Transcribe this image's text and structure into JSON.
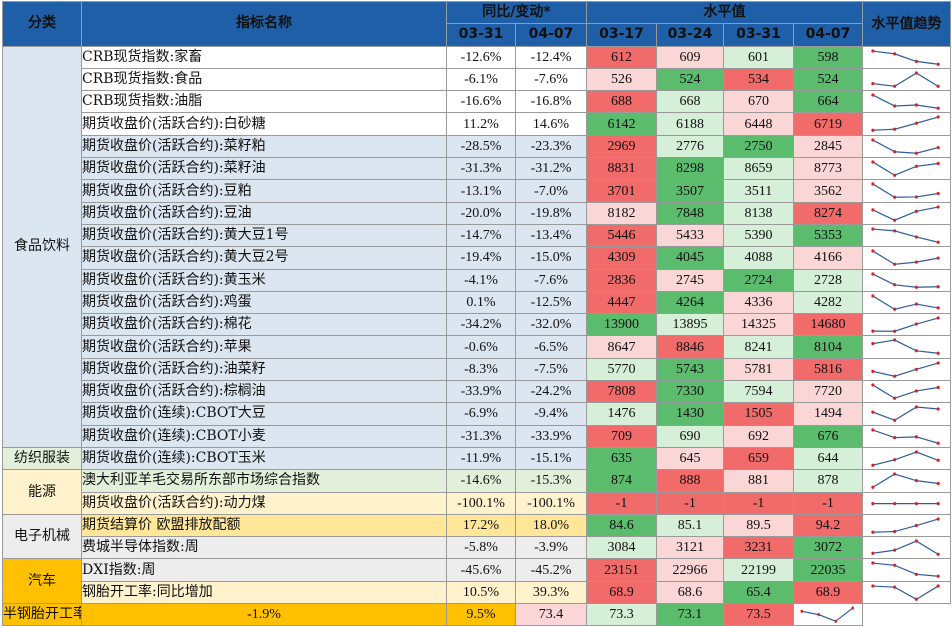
{
  "headers": {
    "category": "分类",
    "indicator": "指标名称",
    "change": "同比/变动*",
    "level": "水平值",
    "trend": "水平值趋势",
    "change_dates": [
      "03-31",
      "04-07"
    ],
    "level_dates": [
      "03-17",
      "03-24",
      "03-31",
      "04-07"
    ]
  },
  "colors": {
    "header_bg": "#1f5fa8",
    "group_food": "#dce6f1",
    "group_textile": "#e2efda",
    "group_energy": "#fff2cc",
    "group_energy_row2": "#ffe699",
    "group_electronics": "#ededed",
    "group_auto": "#ffc000",
    "level_red_strong": "#f26b6b",
    "level_red_light": "#fad6d6",
    "level_green_light": "#d5efd8",
    "level_green_strong": "#5cbc6e",
    "trend_line": "#2e5d9f",
    "trend_marker": "#e02020"
  },
  "groups": [
    {
      "name": "食品饮料",
      "rows": 18,
      "bg": "#dce6f1"
    },
    {
      "name": "纺织服装",
      "rows": 1,
      "bg": "#e2efda"
    },
    {
      "name": "能源",
      "rows": 2,
      "bg": "#fff2cc"
    },
    {
      "name": "电子机械",
      "rows": 2,
      "bg": "#ededed"
    },
    {
      "name": "汽车",
      "rows": 2,
      "bg": "#ffc000"
    }
  ],
  "rows": [
    {
      "indicator": "CRB现货指数:家畜",
      "chg": [
        "-12.6%",
        "-12.4%"
      ],
      "levels": [
        612,
        609,
        601,
        598
      ],
      "lv": [
        "612",
        "609",
        "601",
        "598"
      ],
      "bg": "#ffffff",
      "heat": [
        "#f26b6b",
        "#fad6d6",
        "#d5efd8",
        "#5cbc6e"
      ]
    },
    {
      "indicator": "CRB现货指数:食品",
      "chg": [
        "-6.1%",
        "-7.6%"
      ],
      "levels": [
        526,
        524,
        534,
        524
      ],
      "lv": [
        "526",
        "524",
        "534",
        "524"
      ],
      "bg": "#ffffff",
      "heat": [
        "#fad6d6",
        "#5cbc6e",
        "#f26b6b",
        "#5cbc6e"
      ]
    },
    {
      "indicator": "CRB现货指数:油脂",
      "chg": [
        "-16.6%",
        "-16.8%"
      ],
      "levels": [
        688,
        668,
        670,
        664
      ],
      "lv": [
        "688",
        "668",
        "670",
        "664"
      ],
      "bg": "#ffffff",
      "heat": [
        "#f26b6b",
        "#d5efd8",
        "#fad6d6",
        "#5cbc6e"
      ]
    },
    {
      "indicator": "期货收盘价(活跃合约):白砂糖",
      "chg": [
        "11.2%",
        "14.6%"
      ],
      "levels": [
        6142,
        6188,
        6448,
        6719
      ],
      "lv": [
        "6142",
        "6188",
        "6448",
        "6719"
      ],
      "bg": "#ffffff",
      "heat": [
        "#5cbc6e",
        "#d5efd8",
        "#fad6d6",
        "#f26b6b"
      ]
    },
    {
      "indicator": "期货收盘价(活跃合约):菜籽粕",
      "chg": [
        "-28.5%",
        "-23.3%"
      ],
      "levels": [
        2969,
        2776,
        2750,
        2845
      ],
      "lv": [
        "2969",
        "2776",
        "2750",
        "2845"
      ],
      "bg": "#dce6f1",
      "heat": [
        "#f26b6b",
        "#d5efd8",
        "#5cbc6e",
        "#fad6d6"
      ]
    },
    {
      "indicator": "期货收盘价(活跃合约):菜籽油",
      "chg": [
        "-31.3%",
        "-31.2%"
      ],
      "levels": [
        8831,
        8298,
        8659,
        8773
      ],
      "lv": [
        "8831",
        "8298",
        "8659",
        "8773"
      ],
      "bg": "#dce6f1",
      "heat": [
        "#f26b6b",
        "#5cbc6e",
        "#d5efd8",
        "#fad6d6"
      ]
    },
    {
      "indicator": "期货收盘价(活跃合约):豆粕",
      "chg": [
        "-13.1%",
        "-7.0%"
      ],
      "levels": [
        3701,
        3507,
        3511,
        3562
      ],
      "lv": [
        "3701",
        "3507",
        "3511",
        "3562"
      ],
      "bg": "#dce6f1",
      "heat": [
        "#f26b6b",
        "#5cbc6e",
        "#d5efd8",
        "#fad6d6"
      ]
    },
    {
      "indicator": "期货收盘价(活跃合约):豆油",
      "chg": [
        "-20.0%",
        "-19.8%"
      ],
      "levels": [
        8182,
        7848,
        8138,
        8274
      ],
      "lv": [
        "8182",
        "7848",
        "8138",
        "8274"
      ],
      "bg": "#dce6f1",
      "heat": [
        "#fad6d6",
        "#5cbc6e",
        "#d5efd8",
        "#f26b6b"
      ]
    },
    {
      "indicator": "期货收盘价(活跃合约):黄大豆1号",
      "chg": [
        "-14.7%",
        "-13.4%"
      ],
      "levels": [
        5446,
        5433,
        5390,
        5353
      ],
      "lv": [
        "5446",
        "5433",
        "5390",
        "5353"
      ],
      "bg": "#dce6f1",
      "heat": [
        "#f26b6b",
        "#fad6d6",
        "#d5efd8",
        "#5cbc6e"
      ]
    },
    {
      "indicator": "期货收盘价(活跃合约):黄大豆2号",
      "chg": [
        "-19.4%",
        "-15.0%"
      ],
      "levels": [
        4309,
        4045,
        4088,
        4166
      ],
      "lv": [
        "4309",
        "4045",
        "4088",
        "4166"
      ],
      "bg": "#dce6f1",
      "heat": [
        "#f26b6b",
        "#5cbc6e",
        "#d5efd8",
        "#fad6d6"
      ]
    },
    {
      "indicator": "期货收盘价(活跃合约):黄玉米",
      "chg": [
        "-4.1%",
        "-7.6%"
      ],
      "levels": [
        2836,
        2745,
        2724,
        2728
      ],
      "lv": [
        "2836",
        "2745",
        "2724",
        "2728"
      ],
      "bg": "#dce6f1",
      "heat": [
        "#f26b6b",
        "#fad6d6",
        "#5cbc6e",
        "#d5efd8"
      ]
    },
    {
      "indicator": "期货收盘价(活跃合约):鸡蛋",
      "chg": [
        "0.1%",
        "-12.5%"
      ],
      "levels": [
        4447,
        4264,
        4336,
        4282
      ],
      "lv": [
        "4447",
        "4264",
        "4336",
        "4282"
      ],
      "bg": "#dce6f1",
      "heat": [
        "#f26b6b",
        "#5cbc6e",
        "#fad6d6",
        "#d5efd8"
      ]
    },
    {
      "indicator": "期货收盘价(活跃合约):棉花",
      "chg": [
        "-34.2%",
        "-32.0%"
      ],
      "levels": [
        13900,
        13895,
        14325,
        14680
      ],
      "lv": [
        "13900",
        "13895",
        "14325",
        "14680"
      ],
      "bg": "#dce6f1",
      "heat": [
        "#5cbc6e",
        "#d5efd8",
        "#fad6d6",
        "#f26b6b"
      ]
    },
    {
      "indicator": "期货收盘价(活跃合约):苹果",
      "chg": [
        "-0.6%",
        "-6.5%"
      ],
      "levels": [
        8647,
        8846,
        8241,
        8104
      ],
      "lv": [
        "8647",
        "8846",
        "8241",
        "8104"
      ],
      "bg": "#dce6f1",
      "heat": [
        "#fad6d6",
        "#f26b6b",
        "#d5efd8",
        "#5cbc6e"
      ]
    },
    {
      "indicator": "期货收盘价(活跃合约):油菜籽",
      "chg": [
        "-8.3%",
        "-7.5%"
      ],
      "levels": [
        5770,
        5743,
        5781,
        5816
      ],
      "lv": [
        "5770",
        "5743",
        "5781",
        "5816"
      ],
      "bg": "#dce6f1",
      "heat": [
        "#d5efd8",
        "#5cbc6e",
        "#fad6d6",
        "#f26b6b"
      ]
    },
    {
      "indicator": "期货收盘价(活跃合约):棕榈油",
      "chg": [
        "-33.9%",
        "-24.2%"
      ],
      "levels": [
        7808,
        7330,
        7594,
        7720
      ],
      "lv": [
        "7808",
        "7330",
        "7594",
        "7720"
      ],
      "bg": "#dce6f1",
      "heat": [
        "#f26b6b",
        "#5cbc6e",
        "#d5efd8",
        "#fad6d6"
      ]
    },
    {
      "indicator": "期货收盘价(连续):CBOT大豆",
      "chg": [
        "-6.9%",
        "-9.4%"
      ],
      "levels": [
        1476,
        1430,
        1505,
        1494
      ],
      "lv": [
        "1476",
        "1430",
        "1505",
        "1494"
      ],
      "bg": "#dce6f1",
      "heat": [
        "#d5efd8",
        "#5cbc6e",
        "#f26b6b",
        "#fad6d6"
      ]
    },
    {
      "indicator": "期货收盘价(连续):CBOT小麦",
      "chg": [
        "-31.3%",
        "-33.9%"
      ],
      "levels": [
        709,
        690,
        692,
        676
      ],
      "lv": [
        "709",
        "690",
        "692",
        "676"
      ],
      "bg": "#dce6f1",
      "heat": [
        "#f26b6b",
        "#d5efd8",
        "#fad6d6",
        "#5cbc6e"
      ]
    },
    {
      "indicator": "期货收盘价(连续):CBOT玉米",
      "chg": [
        "-11.9%",
        "-15.1%"
      ],
      "levels": [
        635,
        645,
        659,
        644
      ],
      "lv": [
        "635",
        "645",
        "659",
        "644"
      ],
      "bg": "#dce6f1",
      "heat": [
        "#5cbc6e",
        "#fad6d6",
        "#f26b6b",
        "#d5efd8"
      ]
    },
    {
      "indicator": "澳大利亚羊毛交易所东部市场综合指数",
      "chg": [
        "-14.6%",
        "-15.3%"
      ],
      "levels": [
        874,
        888,
        881,
        878
      ],
      "lv": [
        "874",
        "888",
        "881",
        "878"
      ],
      "bg": "#e2efda",
      "heat": [
        "#5cbc6e",
        "#f26b6b",
        "#fad6d6",
        "#d5efd8"
      ]
    },
    {
      "indicator": "期货收盘价(活跃合约):动力煤",
      "chg": [
        "-100.1%",
        "-100.1%"
      ],
      "levels": [
        -1,
        -1,
        -1,
        -1
      ],
      "lv": [
        "-1",
        "-1",
        "-1",
        "-1"
      ],
      "bg": "#fff2cc",
      "heat": [
        "#f26b6b",
        "#f26b6b",
        "#f26b6b",
        "#f26b6b"
      ]
    },
    {
      "indicator": "期货结算价 欧盟排放配额",
      "chg": [
        "17.2%",
        "18.0%"
      ],
      "levels": [
        84.6,
        85.1,
        89.5,
        94.2
      ],
      "lv": [
        "84.6",
        "85.1",
        "89.5",
        "94.2"
      ],
      "bg": "#ffe699",
      "heat": [
        "#5cbc6e",
        "#d5efd8",
        "#fad6d6",
        "#f26b6b"
      ]
    },
    {
      "indicator": "费城半导体指数:周",
      "chg": [
        "-5.8%",
        "-3.9%"
      ],
      "levels": [
        3084,
        3121,
        3231,
        3072
      ],
      "lv": [
        "3084",
        "3121",
        "3231",
        "3072"
      ],
      "bg": "#ededed",
      "heat": [
        "#d5efd8",
        "#fad6d6",
        "#f26b6b",
        "#5cbc6e"
      ]
    },
    {
      "indicator": "DXI指数:周",
      "chg": [
        "-45.6%",
        "-45.2%"
      ],
      "levels": [
        23151,
        22966,
        22199,
        22035
      ],
      "lv": [
        "23151",
        "22966",
        "22199",
        "22035"
      ],
      "bg": "#ededed",
      "heat": [
        "#f26b6b",
        "#fad6d6",
        "#d5efd8",
        "#5cbc6e"
      ]
    },
    {
      "indicator": "钢胎开工率:同比增加",
      "chg": [
        "10.5%",
        "39.3%"
      ],
      "levels": [
        68.9,
        68.6,
        65.4,
        68.9
      ],
      "lv": [
        "68.9",
        "68.6",
        "65.4",
        "68.9"
      ],
      "bg": "#fff2cc",
      "heat": [
        "#f26b6b",
        "#fad6d6",
        "#5cbc6e",
        "#f26b6b"
      ]
    },
    {
      "indicator": "半钢胎开工率:同比增加",
      "chg": [
        "-1.9%",
        "9.5%"
      ],
      "levels": [
        73.4,
        73.3,
        73.1,
        73.5
      ],
      "lv": [
        "73.4",
        "73.3",
        "73.1",
        "73.5"
      ],
      "bg": "#ffc000",
      "heat": [
        "#fad6d6",
        "#d5efd8",
        "#5cbc6e",
        "#f26b6b"
      ]
    }
  ]
}
